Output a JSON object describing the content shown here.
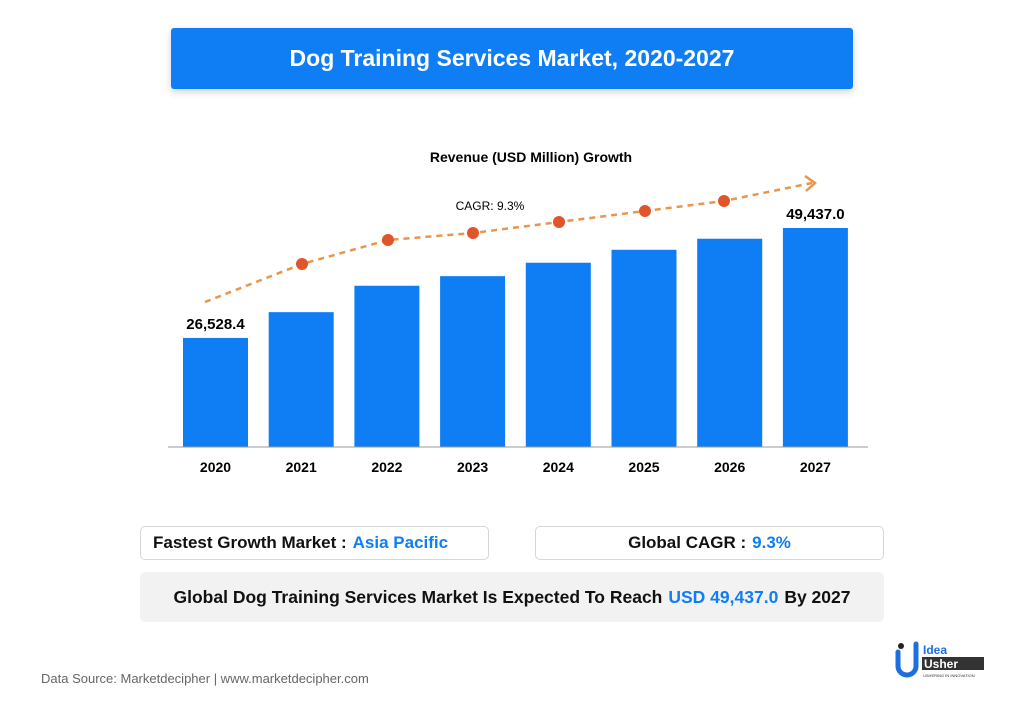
{
  "title": "Dog Training Services Market, 2020-2027",
  "chart_data": {
    "type": "bar",
    "title": "Revenue (USD Million) Growth",
    "categories": [
      "2020",
      "2021",
      "2022",
      "2023",
      "2024",
      "2025",
      "2026",
      "2027"
    ],
    "values": [
      26528.4,
      31900,
      37400,
      39400,
      42200,
      44900,
      47200,
      49437.0
    ],
    "data_labels": {
      "2020": "26,528.4",
      "2027": "49,437.0"
    },
    "annotation": "CAGR: 9.3%",
    "trend_line": "dashed orange arrow with dots",
    "xlabel": "",
    "ylabel": "",
    "ylim": [
      3800,
      50000
    ],
    "grid": false,
    "colors": {
      "bar": "#0f7ef5",
      "trend": "#e8964a",
      "dot": "#e0562a"
    }
  },
  "fastest": {
    "label": "Fastest Growth Market :",
    "value": "Asia Pacific"
  },
  "cagr": {
    "label": "Global CAGR :",
    "value": "9.3%"
  },
  "reach": {
    "prefix": "Global Dog Training Services Market Is Expected To Reach",
    "value": "USD 49,437.0",
    "suffix": "By 2027"
  },
  "source": "Data Source: Marketdecipher | www.marketdecipher.com",
  "logo": {
    "line1": "Idea",
    "line2": "Usher",
    "tagline": "USHERING IN INNOVATION"
  }
}
